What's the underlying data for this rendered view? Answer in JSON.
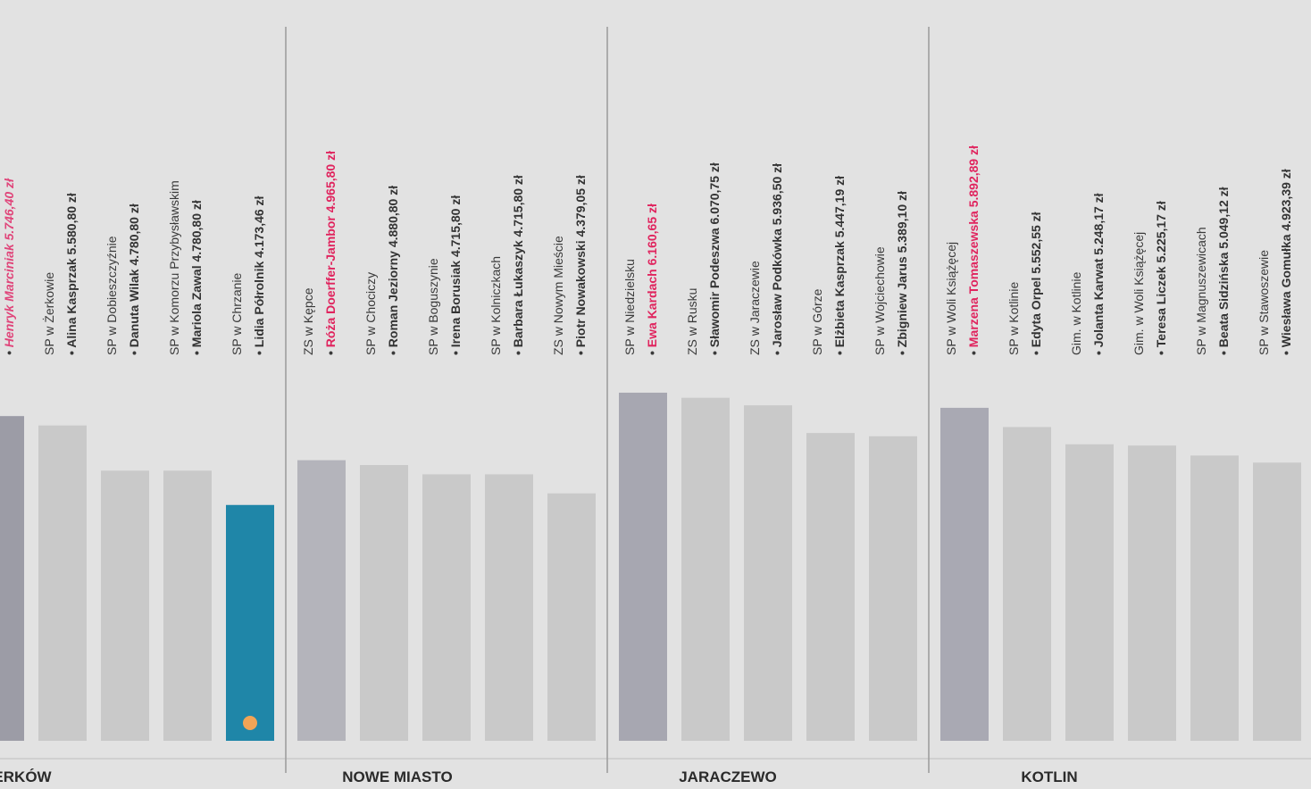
{
  "chart_data": {
    "type": "bar",
    "groups": [
      {
        "name": "ERKÓW",
        "categories": [
          null,
          "SP w Żerkowie",
          "SP w Dobieszczyźnie",
          "SP w Komorzu Przybysławskim",
          "SP w Chrzanie"
        ],
        "persons": [
          "Henryk Marciniak",
          "Alina Kasprzak",
          "Danuta Wilak",
          "Mariola Zawal",
          "Lidia Półrolnik"
        ],
        "values": [
          5746.4,
          5580.8,
          4780.8,
          4780.8,
          4173.46
        ],
        "value_labels": [
          "5.746,40 zł",
          "5.580,80 zł",
          "4.780,80 zł",
          "4.780,80 zł",
          "4.173,46 zł"
        ],
        "colors": [
          "#9c9ca6",
          "#c9c9c9",
          "#c9c9c9",
          "#c9c9c9",
          "#1f86a8"
        ],
        "label_colors": [
          "#e0457a",
          "#333333",
          "#333333",
          "#333333",
          "#333333"
        ]
      },
      {
        "name": "NOWE MIASTO",
        "categories": [
          "ZS w Kępce",
          "SP w Chociczy",
          "SP w Boguszynie",
          "SP w Kolniczkach",
          "ZS w Nowym Mieście"
        ],
        "persons": [
          "Róża Doerffer-Jambor",
          "Roman Jeziorny",
          "Irena Borusiak",
          "Barbara Łukaszyk",
          "Piotr Nowakowski"
        ],
        "values": [
          4965.8,
          4880.8,
          4715.8,
          4715.8,
          4379.05
        ],
        "value_labels": [
          "4.965,80 zł",
          "4.880,80 zł",
          "4.715,80 zł",
          "4.715,80 zł",
          "4.379,05 zł"
        ],
        "colors": [
          "#b4b4bb",
          "#c9c9c9",
          "#c9c9c9",
          "#c9c9c9",
          "#c9c9c9"
        ],
        "label_colors": [
          "#e0245e",
          "#333333",
          "#333333",
          "#333333",
          "#333333"
        ]
      },
      {
        "name": "JARACZEWO",
        "categories": [
          "SP w Niedzielsku",
          "ZS w Rusku",
          "ZS w Jaraczewie",
          "SP w Górze",
          "SP w Wojciechowie"
        ],
        "persons": [
          "Ewa Kardach",
          "Sławomir Podeszwa",
          "Jarosław Podkówka",
          "Elżbieta Kasprzak",
          "Zbigniew Jarus"
        ],
        "values": [
          6160.65,
          6070.75,
          5936.5,
          5447.19,
          5389.1
        ],
        "value_labels": [
          "6.160,65 zł",
          "6.070,75 zł",
          "5.936,50 zł",
          "5.447,19 zł",
          "5.389,10 zł"
        ],
        "colors": [
          "#a7a7b1",
          "#c9c9c9",
          "#c9c9c9",
          "#c9c9c9",
          "#c9c9c9"
        ],
        "label_colors": [
          "#e0245e",
          "#333333",
          "#333333",
          "#333333",
          "#333333"
        ]
      },
      {
        "name": "KOTLIN",
        "categories": [
          "SP w Woli Książęcej",
          "SP w Kotlinie",
          "Gim. w Kotlinie",
          "Gim. w Woli Książęcej",
          "SP w Magnuszewicach",
          "SP w Stawoszewie"
        ],
        "persons": [
          "Marzena Tomaszewska",
          "Edyta Orpel",
          "Jolanta Karwat",
          "Teresa Liczek",
          "Beata Sidzińska",
          "Wiesława Gomułka"
        ],
        "values": [
          5892.89,
          5552.55,
          5248.17,
          5225.17,
          5049.12,
          4923.39
        ],
        "value_labels": [
          "5.892,89 zł",
          "5.552,55 zł",
          "5.248,17 zł",
          "5.225,17 zł",
          "5.049,12 zł",
          "4.923,39 zł"
        ],
        "colors": [
          "#a9a9b3",
          "#c9c9c9",
          "#c9c9c9",
          "#c9c9c9",
          "#c9c9c9",
          "#c9c9c9"
        ],
        "label_colors": [
          "#e0245e",
          "#333333",
          "#333333",
          "#333333",
          "#333333",
          "#333333"
        ]
      }
    ]
  }
}
